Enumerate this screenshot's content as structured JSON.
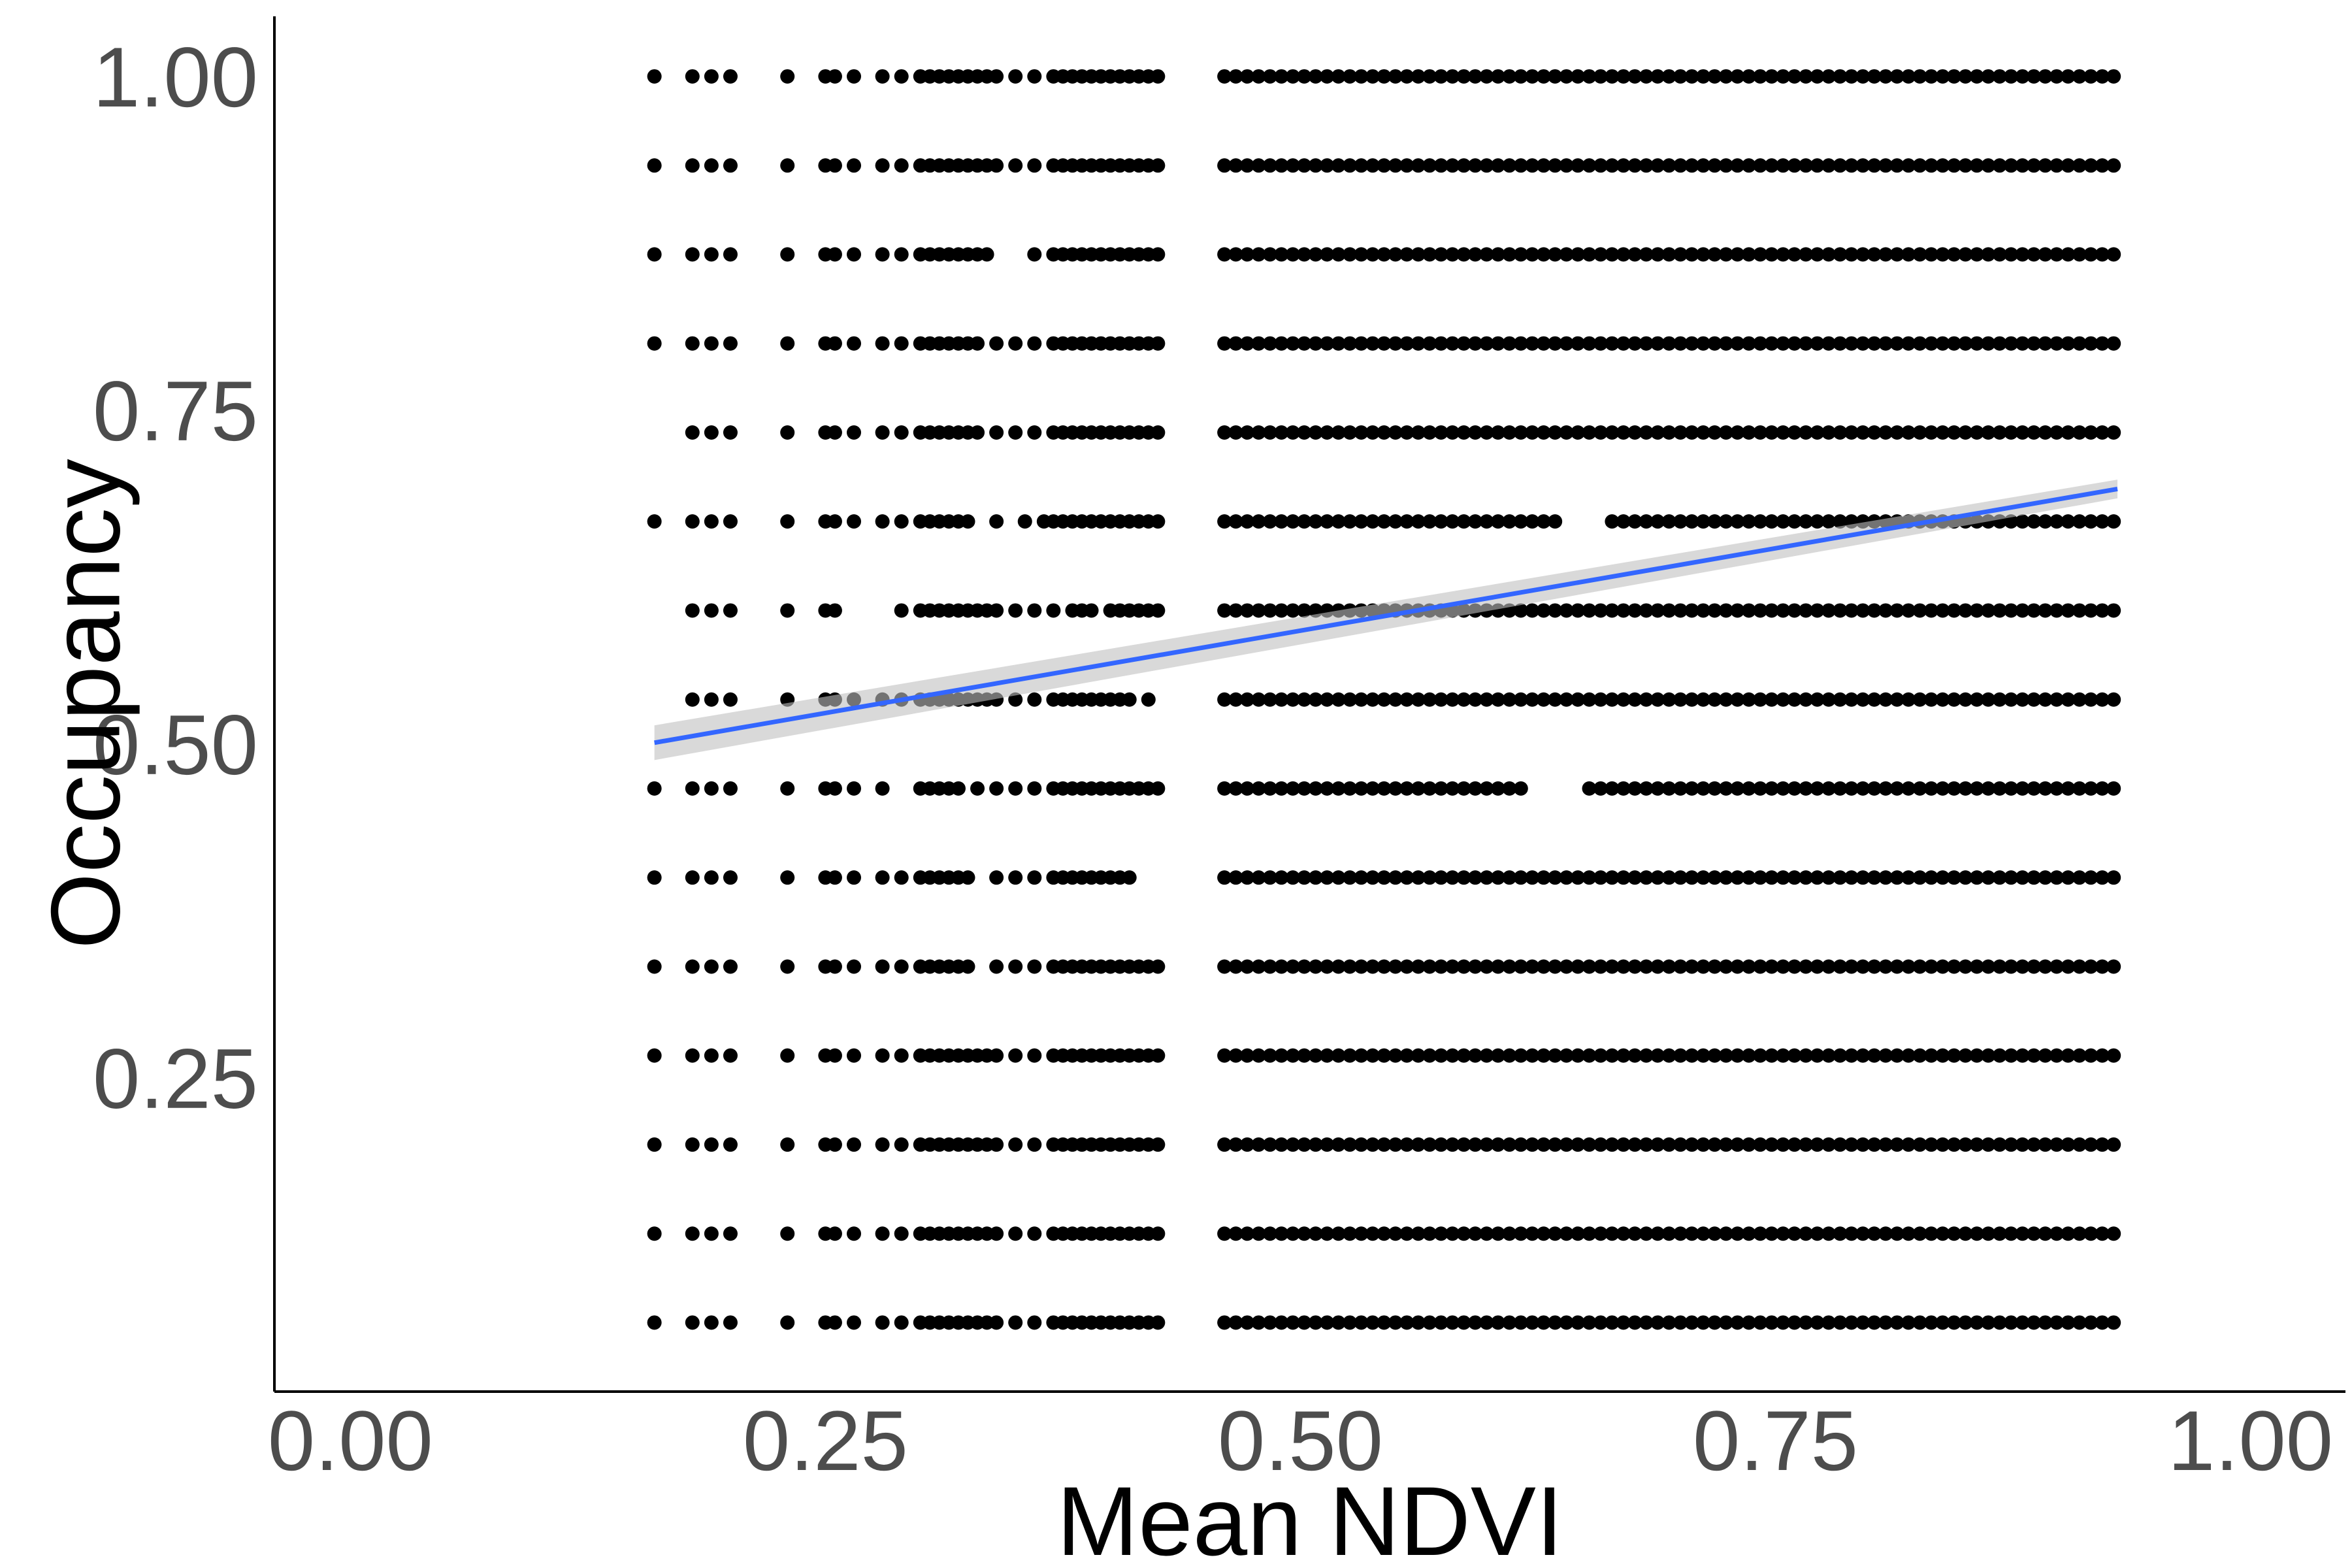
{
  "chart_data": {
    "type": "scatter",
    "title": "",
    "xlabel": "Mean NDVI",
    "ylabel": "Occupancy",
    "xlim": [
      -0.04,
      1.05
    ],
    "ylim": [
      0.015,
      1.045
    ],
    "xticks": [
      0.0,
      0.25,
      0.5,
      0.75,
      1.0
    ],
    "xtick_labels": [
      "0.00",
      "0.25",
      "0.50",
      "0.75",
      "1.00"
    ],
    "yticks": [
      0.25,
      0.5,
      0.75,
      1.0
    ],
    "ytick_labels": [
      "0.25",
      "0.50",
      "0.75",
      "1.00"
    ],
    "grid": false,
    "legend": "none",
    "colors": {
      "points": "#000000",
      "fit_line": "#3366ff",
      "confidence_band": "#bfbfbf",
      "axis": "#000000",
      "tick_label": "#4d4d4d"
    },
    "occupancy_levels": [
      0.0667,
      0.1333,
      0.2,
      0.2667,
      0.3333,
      0.4,
      0.4667,
      0.5333,
      0.6,
      0.6667,
      0.7333,
      0.8,
      0.8667,
      0.9333,
      1.0
    ],
    "point_rows": [
      {
        "y": 0.0667,
        "x": [
          0.16,
          0.18,
          0.19,
          0.2,
          0.23,
          0.25,
          0.255,
          0.265,
          0.28,
          0.29,
          0.3,
          0.305,
          0.31,
          0.315,
          0.32,
          0.325,
          0.33,
          0.335,
          0.34,
          0.35,
          0.36,
          0.37,
          0.375,
          0.38,
          0.385,
          0.39,
          0.395,
          0.4,
          0.405,
          0.41,
          0.415,
          0.42,
          0.425
        ]
      },
      {
        "y": 0.1333,
        "x": [
          0.16,
          0.18,
          0.19,
          0.2,
          0.23,
          0.25,
          0.255,
          0.265,
          0.28,
          0.29,
          0.3,
          0.305,
          0.31,
          0.315,
          0.32,
          0.325,
          0.33,
          0.335,
          0.34,
          0.35,
          0.36,
          0.37,
          0.375,
          0.38,
          0.385,
          0.39,
          0.395,
          0.4,
          0.405,
          0.41,
          0.415,
          0.42,
          0.425
        ]
      },
      {
        "y": 0.2,
        "x": [
          0.16,
          0.18,
          0.19,
          0.2,
          0.23,
          0.25,
          0.255,
          0.265,
          0.28,
          0.29,
          0.3,
          0.305,
          0.31,
          0.315,
          0.32,
          0.325,
          0.33,
          0.335,
          0.34,
          0.35,
          0.36,
          0.37,
          0.375,
          0.38,
          0.385,
          0.39,
          0.395,
          0.4,
          0.405,
          0.41,
          0.415,
          0.42,
          0.425
        ]
      },
      {
        "y": 0.2667,
        "x": [
          0.16,
          0.18,
          0.19,
          0.2,
          0.23,
          0.25,
          0.255,
          0.265,
          0.28,
          0.29,
          0.3,
          0.305,
          0.31,
          0.315,
          0.32,
          0.325,
          0.33,
          0.335,
          0.34,
          0.35,
          0.36,
          0.37,
          0.375,
          0.38,
          0.385,
          0.39,
          0.395,
          0.4,
          0.405,
          0.41,
          0.415,
          0.42,
          0.425
        ]
      },
      {
        "y": 0.3333,
        "x": [
          0.16,
          0.18,
          0.19,
          0.2,
          0.23,
          0.25,
          0.255,
          0.265,
          0.28,
          0.29,
          0.3,
          0.305,
          0.31,
          0.315,
          0.32,
          0.325,
          0.34,
          0.35,
          0.36,
          0.37,
          0.375,
          0.38,
          0.385,
          0.39,
          0.395,
          0.4,
          0.405,
          0.41,
          0.415,
          0.42,
          0.425
        ]
      },
      {
        "y": 0.4,
        "x": [
          0.16,
          0.18,
          0.19,
          0.2,
          0.23,
          0.25,
          0.255,
          0.265,
          0.28,
          0.29,
          0.3,
          0.305,
          0.31,
          0.315,
          0.32,
          0.325,
          0.34,
          0.35,
          0.36,
          0.37,
          0.375,
          0.38,
          0.385,
          0.39,
          0.395,
          0.4,
          0.405,
          0.41
        ]
      },
      {
        "y": 0.4667,
        "x": [
          0.16,
          0.18,
          0.19,
          0.2,
          0.23,
          0.25,
          0.255,
          0.265,
          0.28,
          0.3,
          0.305,
          0.31,
          0.315,
          0.32,
          0.33,
          0.34,
          0.35,
          0.36,
          0.37,
          0.375,
          0.38,
          0.385,
          0.39,
          0.395,
          0.4,
          0.405,
          0.41,
          0.415,
          0.42,
          0.425
        ]
      },
      {
        "y": 0.5333,
        "x": [
          0.18,
          0.19,
          0.2,
          0.23,
          0.25,
          0.255,
          0.265,
          0.28,
          0.29,
          0.3,
          0.305,
          0.31,
          0.315,
          0.32,
          0.325,
          0.33,
          0.335,
          0.34,
          0.35,
          0.36,
          0.37,
          0.375,
          0.38,
          0.385,
          0.39,
          0.395,
          0.4,
          0.405,
          0.41,
          0.42
        ]
      },
      {
        "y": 0.6,
        "x": [
          0.18,
          0.19,
          0.2,
          0.23,
          0.25,
          0.255,
          0.29,
          0.3,
          0.305,
          0.31,
          0.315,
          0.32,
          0.325,
          0.33,
          0.335,
          0.34,
          0.35,
          0.36,
          0.37,
          0.38,
          0.385,
          0.39,
          0.4,
          0.405,
          0.41,
          0.415,
          0.42,
          0.425
        ]
      },
      {
        "y": 0.6667,
        "x": [
          0.16,
          0.18,
          0.19,
          0.2,
          0.23,
          0.25,
          0.255,
          0.265,
          0.28,
          0.29,
          0.3,
          0.305,
          0.31,
          0.315,
          0.32,
          0.325,
          0.34,
          0.355,
          0.365,
          0.37,
          0.375,
          0.38,
          0.385,
          0.39,
          0.395,
          0.4,
          0.405,
          0.41,
          0.415,
          0.42,
          0.425
        ]
      },
      {
        "y": 0.7333,
        "x": [
          0.18,
          0.19,
          0.2,
          0.23,
          0.25,
          0.255,
          0.265,
          0.28,
          0.29,
          0.3,
          0.305,
          0.31,
          0.315,
          0.32,
          0.325,
          0.33,
          0.34,
          0.35,
          0.36,
          0.37,
          0.375,
          0.38,
          0.385,
          0.39,
          0.395,
          0.4,
          0.405,
          0.41,
          0.415,
          0.42,
          0.425
        ]
      },
      {
        "y": 0.8,
        "x": [
          0.16,
          0.18,
          0.19,
          0.2,
          0.23,
          0.25,
          0.255,
          0.265,
          0.28,
          0.29,
          0.3,
          0.305,
          0.31,
          0.315,
          0.32,
          0.325,
          0.33,
          0.34,
          0.35,
          0.36,
          0.37,
          0.375,
          0.38,
          0.385,
          0.39,
          0.395,
          0.4,
          0.405,
          0.41,
          0.415,
          0.42,
          0.425
        ]
      },
      {
        "y": 0.8667,
        "x": [
          0.16,
          0.18,
          0.19,
          0.2,
          0.23,
          0.25,
          0.255,
          0.265,
          0.28,
          0.29,
          0.3,
          0.305,
          0.31,
          0.315,
          0.32,
          0.325,
          0.33,
          0.335,
          0.36,
          0.37,
          0.375,
          0.38,
          0.385,
          0.39,
          0.395,
          0.4,
          0.405,
          0.41,
          0.415,
          0.42,
          0.425
        ]
      },
      {
        "y": 0.9333,
        "x": [
          0.16,
          0.18,
          0.19,
          0.2,
          0.23,
          0.25,
          0.255,
          0.265,
          0.28,
          0.29,
          0.3,
          0.305,
          0.31,
          0.315,
          0.32,
          0.325,
          0.33,
          0.335,
          0.34,
          0.35,
          0.36,
          0.37,
          0.375,
          0.38,
          0.385,
          0.39,
          0.395,
          0.4,
          0.405,
          0.41,
          0.415,
          0.42,
          0.425
        ]
      },
      {
        "y": 1.0,
        "x": [
          0.16,
          0.18,
          0.19,
          0.2,
          0.23,
          0.25,
          0.255,
          0.265,
          0.28,
          0.29,
          0.3,
          0.305,
          0.31,
          0.315,
          0.32,
          0.325,
          0.33,
          0.335,
          0.34,
          0.35,
          0.36,
          0.37,
          0.375,
          0.38,
          0.385,
          0.39,
          0.395,
          0.4,
          0.405,
          0.41,
          0.415,
          0.42,
          0.425
        ]
      }
    ],
    "dense_range": {
      "x_start": 0.46,
      "x_end": 0.93,
      "step": 0.006
    },
    "dense_gaps": [
      {
        "y": 0.8667,
        "gaps": []
      },
      {
        "y": 0.6667,
        "gaps": [
          [
            0.64,
            0.66
          ]
        ]
      },
      {
        "y": 0.4667,
        "gaps": [
          [
            0.62,
            0.65
          ]
        ]
      },
      {
        "y": 0.7333,
        "gaps": []
      }
    ],
    "fit_line": {
      "x": [
        0.16,
        0.93
      ],
      "y": [
        0.501,
        0.691
      ],
      "ci_lower": [
        0.488,
        0.684
      ],
      "ci_upper": [
        0.514,
        0.698
      ]
    }
  }
}
